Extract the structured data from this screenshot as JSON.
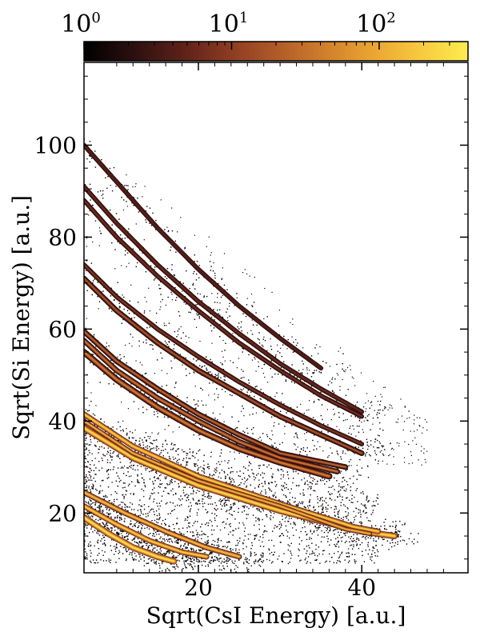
{
  "chart_data": {
    "type": "heatmap",
    "xlabel": "Sqrt(CsI Energy) [a.u.]",
    "ylabel": "Sqrt(Si Energy) [a.u.]",
    "xlim": [
      6,
      53
    ],
    "ylim": [
      7,
      118
    ],
    "x_ticks": [
      20,
      40
    ],
    "x_tick_labels": [
      "20",
      "40"
    ],
    "y_ticks": [
      20,
      40,
      60,
      80,
      100
    ],
    "y_tick_labels": [
      "20",
      "40",
      "60",
      "80",
      "100"
    ],
    "colorbar": {
      "scale": "log",
      "range": [
        1,
        400
      ],
      "ticks": [
        {
          "value": 1,
          "base": "10",
          "exp": "0"
        },
        {
          "value": 10,
          "base": "10",
          "exp": "1"
        },
        {
          "value": 100,
          "base": "10",
          "exp": "2"
        }
      ],
      "colormap": [
        "#000000",
        "#2b0f0f",
        "#5a2018",
        "#8a3a22",
        "#b05a28",
        "#d07e2c",
        "#eaa432",
        "#f8c93f",
        "#fcec50"
      ],
      "placement": "top"
    },
    "bands": [
      {
        "id": "band-1",
        "x": [
          6,
          9,
          12,
          15,
          17
        ],
        "y": [
          19,
          15.5,
          12.5,
          10.5,
          9.5
        ],
        "peak_counts": 300,
        "width": 0.7
      },
      {
        "id": "band-2",
        "x": [
          6,
          10,
          14,
          18,
          21
        ],
        "y": [
          21.5,
          17.5,
          14,
          11.5,
          10.5
        ],
        "peak_counts": 200,
        "width": 0.6
      },
      {
        "id": "band-3",
        "x": [
          6,
          11,
          16,
          21,
          25
        ],
        "y": [
          24.5,
          20,
          16,
          12.5,
          10.5
        ],
        "peak_counts": 150,
        "width": 0.6
      },
      {
        "id": "band-4",
        "x": [
          6,
          12,
          20,
          30,
          40,
          44
        ],
        "y": [
          38.5,
          32,
          26,
          20.5,
          16,
          15
        ],
        "peak_counts": 250,
        "width": 0.7
      },
      {
        "id": "band-5",
        "x": [
          6,
          12,
          20,
          30,
          39,
          42
        ],
        "y": [
          41.5,
          34.5,
          28,
          22,
          17,
          16
        ],
        "peak_counts": 200,
        "width": 0.6
      },
      {
        "id": "band-6",
        "x": [
          6,
          12,
          20,
          30,
          38,
          41
        ],
        "y": [
          40,
          33,
          27,
          21.5,
          16.5,
          15.5
        ],
        "peak_counts": 120,
        "width": 0.5
      },
      {
        "id": "band-7",
        "x": [
          6,
          10,
          15,
          20,
          25,
          30,
          36
        ],
        "y": [
          55,
          49,
          43,
          38,
          34,
          31,
          28
        ],
        "peak_counts": 40,
        "width": 0.7
      },
      {
        "id": "band-8",
        "x": [
          6,
          10,
          15,
          20,
          25,
          30,
          37
        ],
        "y": [
          57.5,
          51,
          45,
          40,
          35.5,
          32,
          29
        ],
        "peak_counts": 35,
        "width": 0.6
      },
      {
        "id": "band-9",
        "x": [
          6,
          10,
          15,
          20,
          25,
          30,
          38
        ],
        "y": [
          59.5,
          53,
          47,
          41.5,
          37,
          33,
          30
        ],
        "peak_counts": 25,
        "width": 0.6
      },
      {
        "id": "band-10",
        "x": [
          6,
          10,
          15,
          20,
          25,
          30,
          35,
          40
        ],
        "y": [
          71,
          64,
          57,
          51,
          46,
          41,
          37,
          33
        ],
        "peak_counts": 18,
        "width": 0.6
      },
      {
        "id": "band-11",
        "x": [
          6,
          10,
          15,
          20,
          25,
          30,
          35,
          40
        ],
        "y": [
          74,
          67,
          60,
          54,
          48.5,
          43.5,
          39,
          35
        ],
        "peak_counts": 10,
        "width": 0.5
      },
      {
        "id": "band-12",
        "x": [
          6,
          10,
          15,
          20,
          25,
          30,
          35,
          40
        ],
        "y": [
          88,
          80,
          71.5,
          64,
          57,
          51,
          45.5,
          41
        ],
        "peak_counts": 7,
        "width": 0.5
      },
      {
        "id": "band-13",
        "x": [
          6,
          10,
          15,
          20,
          25,
          30,
          35,
          40
        ],
        "y": [
          91,
          83,
          74,
          66,
          59,
          52.5,
          47,
          42
        ],
        "peak_counts": 6,
        "width": 0.5
      },
      {
        "id": "band-14",
        "x": [
          6,
          10,
          15,
          20,
          25,
          30,
          35
        ],
        "y": [
          100,
          92,
          82,
          73,
          65,
          58,
          51.5
        ],
        "peak_counts": 4,
        "width": 0.5
      }
    ]
  }
}
